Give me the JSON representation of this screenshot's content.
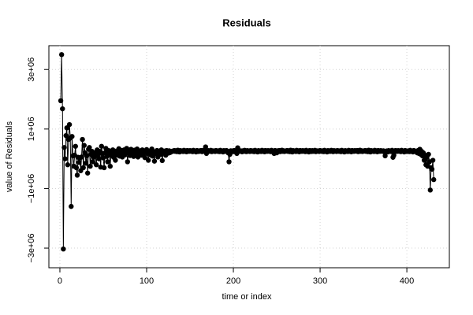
{
  "chart_data": {
    "type": "line",
    "title": "Residuals",
    "x_label": "time or index",
    "y_label": "value of Residuals",
    "color": "#000000",
    "markers": true,
    "grid": true,
    "xlim": [
      -12.7,
      449
    ],
    "ylim": [
      -3660000,
      3800000
    ],
    "xticks": [
      0,
      100,
      200,
      300,
      400
    ],
    "yticks": [
      {
        "value": -3000000,
        "label": "−3e+06"
      },
      {
        "value": -1000000,
        "label": "−1e+06"
      },
      {
        "value": 1000000,
        "label": "1e+06"
      },
      {
        "value": 3000000,
        "label": "3e+06"
      }
    ],
    "values": [
      1950000,
      3500000,
      1680000,
      -3030000,
      380000,
      0,
      780000,
      1040000,
      -200000,
      650000,
      1150000,
      700000,
      -1600000,
      750000,
      100000,
      -250000,
      120000,
      420000,
      -300000,
      -550000,
      50000,
      -120000,
      30000,
      -400000,
      60000,
      650000,
      -300000,
      450000,
      200000,
      -150000,
      100000,
      -480000,
      320000,
      380000,
      -250000,
      150000,
      250000,
      -100000,
      50000,
      200000,
      100000,
      -200000,
      300000,
      150000,
      0,
      250000,
      -280000,
      420000,
      180000,
      30000,
      -300000,
      200000,
      350000,
      80000,
      -100000,
      280000,
      150000,
      -250000,
      220000,
      100000,
      300000,
      50000,
      180000,
      -50000,
      260000,
      120000,
      200000,
      340000,
      90000,
      150000,
      280000,
      60000,
      220000,
      300000,
      130000,
      180000,
      350000,
      -100000,
      240000,
      200000,
      110000,
      320000,
      250000,
      150000,
      80000,
      290000,
      210000,
      170000,
      330000,
      60000,
      230000,
      190000,
      270000,
      120000,
      300000,
      160000,
      220000,
      40000,
      250000,
      310000,
      180000,
      -50000,
      260000,
      200000,
      120000,
      330000,
      90000,
      240000,
      -80000,
      210000,
      170000,
      280000,
      60000,
      230000,
      250000,
      150000,
      300000,
      -60000,
      200000,
      260000,
      180000,
      120000,
      280000,
      230000,
      190000,
      270000,
      210000,
      250000,
      240000,
      260000,
      260000,
      280000,
      250000,
      270000,
      240000,
      290000,
      260000,
      230000,
      275000,
      255000,
      265000,
      245000,
      285000,
      250000,
      270000,
      235000,
      280000,
      260000,
      250000,
      275000,
      255000,
      270000,
      240000,
      285000,
      260000,
      250000,
      230000,
      280000,
      265000,
      245000,
      270000,
      255000,
      280000,
      240000,
      260000,
      290000,
      250000,
      400000,
      180000,
      265000,
      275000,
      250000,
      260000,
      285000,
      240000,
      270000,
      255000,
      265000,
      245000,
      280000,
      260000,
      250000,
      270000,
      240000,
      285000,
      255000,
      265000,
      230000,
      275000,
      250000,
      260000,
      280000,
      245000,
      200000,
      -100000,
      150000,
      270000,
      255000,
      265000,
      240000,
      280000,
      250000,
      260000,
      180000,
      370000,
      245000,
      275000,
      255000,
      265000,
      235000,
      270000,
      250000,
      285000,
      260000,
      240000,
      275000,
      255000,
      265000,
      245000,
      280000,
      260000,
      250000,
      270000,
      240000,
      285000,
      255000,
      265000,
      230000,
      275000,
      250000,
      265000,
      245000,
      285000,
      250000,
      270000,
      235000,
      280000,
      260000,
      250000,
      275000,
      255000,
      270000,
      240000,
      285000,
      260000,
      250000,
      180000,
      280000,
      265000,
      200000,
      270000,
      255000,
      280000,
      240000,
      260000,
      290000,
      250000,
      270000,
      245000,
      265000,
      260000,
      280000,
      250000,
      270000,
      240000,
      290000,
      260000,
      230000,
      275000,
      255000,
      265000,
      245000,
      285000,
      250000,
      270000,
      235000,
      280000,
      260000,
      250000,
      275000,
      255000,
      270000,
      240000,
      285000,
      260000,
      250000,
      230000,
      280000,
      265000,
      245000,
      275000,
      250000,
      260000,
      285000,
      240000,
      270000,
      255000,
      265000,
      245000,
      280000,
      260000,
      250000,
      270000,
      240000,
      285000,
      255000,
      265000,
      230000,
      275000,
      250000,
      270000,
      250000,
      285000,
      260000,
      240000,
      275000,
      255000,
      265000,
      245000,
      280000,
      260000,
      250000,
      270000,
      240000,
      285000,
      255000,
      265000,
      230000,
      275000,
      250000,
      265000,
      245000,
      285000,
      250000,
      270000,
      235000,
      280000,
      260000,
      250000,
      275000,
      270000,
      255000,
      280000,
      240000,
      260000,
      290000,
      250000,
      270000,
      245000,
      265000,
      260000,
      280000,
      250000,
      270000,
      240000,
      290000,
      260000,
      230000,
      275000,
      255000,
      265000,
      245000,
      285000,
      250000,
      270000,
      235000,
      280000,
      260000,
      250000,
      275000,
      260000,
      250000,
      270000,
      240000,
      100000,
      255000,
      265000,
      230000,
      275000,
      250000,
      265000,
      245000,
      285000,
      50000,
      120000,
      235000,
      280000,
      260000,
      250000,
      275000,
      255000,
      270000,
      240000,
      285000,
      260000,
      250000,
      230000,
      280000,
      265000,
      245000,
      255000,
      270000,
      240000,
      285000,
      260000,
      250000,
      230000,
      280000,
      265000,
      245000,
      250000,
      200000,
      280000,
      180000,
      320000,
      150000,
      250000,
      100000,
      200000,
      -50000,
      120000,
      -200000,
      50000,
      -250000,
      150000,
      -100000,
      -1050000,
      -300000,
      -350000,
      -50000,
      -700000
    ]
  }
}
